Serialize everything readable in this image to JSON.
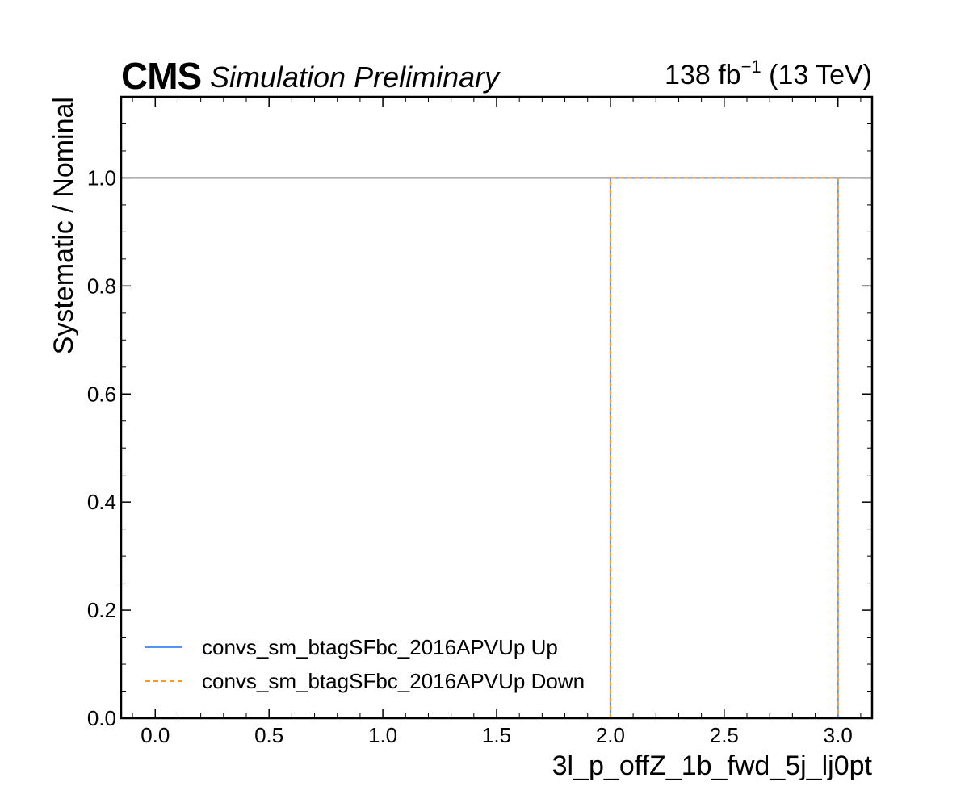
{
  "header": {
    "experiment": "CMS",
    "status": "Simulation Preliminary",
    "lumi_value": "138 fb",
    "lumi_exponent": "−1",
    "energy": " (13 TeV)"
  },
  "chart_data": {
    "type": "line",
    "xlabel": "3l_p_offZ_1b_fwd_5j_lj0pt",
    "ylabel": "Systematic / Nominal",
    "xlim": [
      -0.15,
      3.15
    ],
    "ylim": [
      0.0,
      1.15
    ],
    "xticks": [
      0.0,
      0.5,
      1.0,
      1.5,
      2.0,
      2.5,
      3.0
    ],
    "xtick_labels": [
      "0.0",
      "0.5",
      "1.0",
      "1.5",
      "2.0",
      "2.5",
      "3.0"
    ],
    "yticks": [
      0.0,
      0.2,
      0.4,
      0.6,
      0.8,
      1.0
    ],
    "ytick_labels": [
      "0.0",
      "0.2",
      "0.4",
      "0.6",
      "0.8",
      "1.0"
    ],
    "reference_line": {
      "y": 1.0,
      "color": "#808080"
    },
    "series": [
      {
        "name": "convs_sm_btagSFbc_2016APVUp Up",
        "style": "solid",
        "color": "#5790fc",
        "x": [
          2.0,
          2.0,
          3.0,
          3.0
        ],
        "y": [
          0.0,
          1.0,
          1.0,
          0.0
        ]
      },
      {
        "name": "convs_sm_btagSFbc_2016APVUp Down",
        "style": "dashed",
        "color": "#f89c20",
        "x": [
          2.0,
          2.0,
          3.0,
          3.0
        ],
        "y": [
          0.0,
          1.0,
          1.0,
          0.0
        ]
      }
    ],
    "legend": {
      "position": "lower-left"
    },
    "grid": false
  }
}
